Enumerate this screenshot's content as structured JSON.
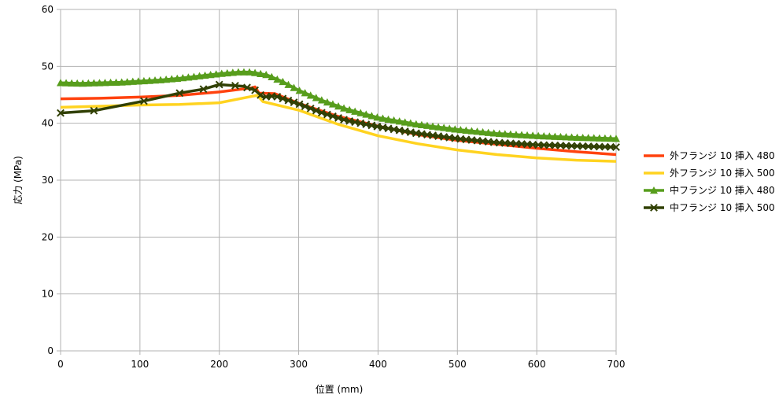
{
  "chart_data": {
    "type": "line",
    "title": "",
    "xlabel": "位置 (mm)",
    "ylabel": "応力 (MPa)",
    "xlim": [
      0,
      700
    ],
    "ylim": [
      0,
      60
    ],
    "xticks": [
      0,
      100,
      200,
      300,
      400,
      500,
      600,
      700
    ],
    "yticks": [
      0,
      10,
      20,
      30,
      40,
      50,
      60
    ],
    "grid": true,
    "legend_position": "right",
    "series": [
      {
        "name": "外フランジ 10 挿入 480",
        "color": "#ff420e",
        "marker": "none",
        "x": [
          0,
          50,
          100,
          150,
          200,
          240,
          245,
          250,
          270,
          300,
          350,
          400,
          450,
          500,
          550,
          600,
          650,
          700
        ],
        "y": [
          44.3,
          44.4,
          44.6,
          44.9,
          45.5,
          46.2,
          46.4,
          45.3,
          45.2,
          43.5,
          41.2,
          39.5,
          38.0,
          37.0,
          36.3,
          35.6,
          35.0,
          34.5
        ]
      },
      {
        "name": "外フランジ 10 挿入 500",
        "color": "#ffd320",
        "marker": "none",
        "x": [
          0,
          50,
          100,
          150,
          200,
          240,
          248,
          255,
          300,
          350,
          400,
          450,
          500,
          550,
          600,
          650,
          700
        ],
        "y": [
          42.8,
          43.0,
          43.2,
          43.3,
          43.6,
          44.7,
          44.9,
          43.8,
          42.3,
          39.8,
          37.8,
          36.4,
          35.3,
          34.5,
          33.9,
          33.5,
          33.3
        ]
      },
      {
        "name": "中フランジ 10 挿入 480",
        "color": "#579d1c",
        "marker": "triangle",
        "x": [
          0,
          25,
          50,
          75,
          100,
          125,
          150,
          175,
          200,
          225,
          240,
          260,
          280,
          300,
          330,
          360,
          400,
          450,
          500,
          550,
          600,
          650,
          700
        ],
        "y": [
          47.1,
          47.0,
          47.1,
          47.2,
          47.4,
          47.6,
          47.9,
          48.3,
          48.7,
          49.0,
          49.0,
          48.5,
          47.3,
          45.8,
          44.0,
          42.5,
          41.0,
          39.8,
          38.9,
          38.2,
          37.8,
          37.5,
          37.3
        ]
      },
      {
        "name": "中フランジ 10 挿入 500",
        "color": "#314004",
        "marker": "x",
        "x": [
          0,
          42,
          105,
          150,
          180,
          200,
          230,
          245,
          255,
          270,
          300,
          330,
          360,
          400,
          450,
          500,
          550,
          600,
          650,
          700
        ],
        "y": [
          41.8,
          42.2,
          43.9,
          45.3,
          46.0,
          46.8,
          46.5,
          45.8,
          44.6,
          44.8,
          43.4,
          41.8,
          40.5,
          39.4,
          38.2,
          37.3,
          36.6,
          36.2,
          36.0,
          35.8
        ]
      }
    ]
  }
}
